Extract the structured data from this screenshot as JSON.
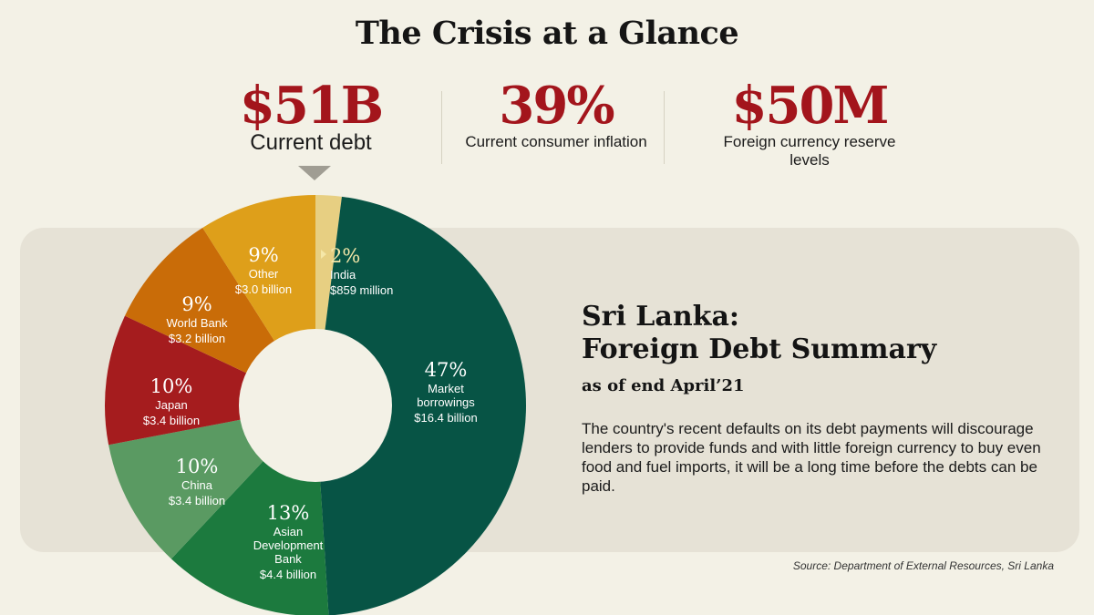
{
  "header": {
    "title": "The Crisis at a Glance"
  },
  "stats": [
    {
      "value": "$51B",
      "label": "Current debt"
    },
    {
      "value": "39%",
      "label": "Current consumer inflation"
    },
    {
      "value": "$50M",
      "label": "Foreign currency reserve levels"
    }
  ],
  "summary": {
    "heading_line1": "Sri Lanka:",
    "heading_line2": "Foreign Debt Summary",
    "as_of": "as of end April’21",
    "description": "The country's recent defaults on its debt payments will discourage lenders to provide funds and with little foreign currency to buy even food and fuel imports, it will be a long time before the debts can be paid."
  },
  "source": "Source: Department of External Resources, Sri Lanka",
  "chart_data": {
    "type": "pie",
    "style": "donut",
    "title": "Sri Lanka: Foreign Debt Summary",
    "series": [
      {
        "name": "India",
        "percent": 2,
        "pct_label": "2%",
        "amount": "$859 million",
        "color": "#e7cf82"
      },
      {
        "name": "Market borrowings",
        "percent": 47,
        "pct_label": "47%",
        "amount": "$16.4 billion",
        "color": "#075445"
      },
      {
        "name": "Asian Development Bank",
        "percent": 13,
        "pct_label": "13%",
        "amount": "$4.4 billion",
        "color": "#1c7a3e"
      },
      {
        "name": "China",
        "percent": 10,
        "pct_label": "10%",
        "amount": "$3.4 billion",
        "color": "#5a9a62"
      },
      {
        "name": "Japan",
        "percent": 10,
        "pct_label": "10%",
        "amount": "$3.4 billion",
        "color": "#a51c1e"
      },
      {
        "name": "World Bank",
        "percent": 9,
        "pct_label": "9%",
        "amount": "$3.2 billion",
        "color": "#c96c08"
      },
      {
        "name": "Other",
        "percent": 9,
        "pct_label": "9%",
        "amount": "$3.0 billion",
        "color": "#de9f1a"
      }
    ]
  }
}
